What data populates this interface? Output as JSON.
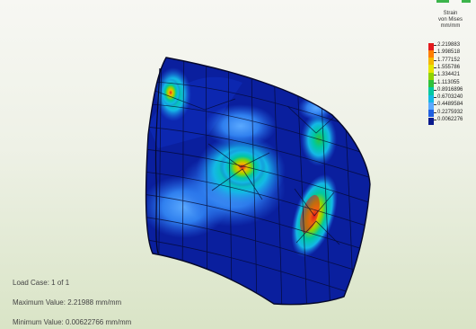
{
  "legend": {
    "title_line1": "Strain",
    "title_line2": "von Mises",
    "title_line3": "mm/mm",
    "levels": [
      {
        "value": "2.219883",
        "color": "#e41a1c"
      },
      {
        "value": "1.998518",
        "color": "#ff7f00"
      },
      {
        "value": "1.777152",
        "color": "#f5b800"
      },
      {
        "value": "1.555786",
        "color": "#e6e600"
      },
      {
        "value": "1.334421",
        "color": "#8fd400"
      },
      {
        "value": "1.113055",
        "color": "#2fc23a"
      },
      {
        "value": "0.8916896",
        "color": "#00c8a0"
      },
      {
        "value": "0.6703240",
        "color": "#14b8e6"
      },
      {
        "value": "0.4489584",
        "color": "#5aa9ff"
      },
      {
        "value": "0.2275932",
        "color": "#1f5fe0"
      },
      {
        "value": "0.0062276",
        "color": "#0a1a8c"
      }
    ]
  },
  "info": {
    "load_case": "Load Case:  1 of 1",
    "max_value": "Maximum Value: 2.21988 mm/mm",
    "min_value": "Minimum Value: 0.00622766 mm/mm"
  },
  "colors": {
    "mesh_base": "#0a1f9e",
    "mesh_line": "#05082a",
    "hot": "#e41a1c",
    "accent_mark": "#3cb44b"
  }
}
